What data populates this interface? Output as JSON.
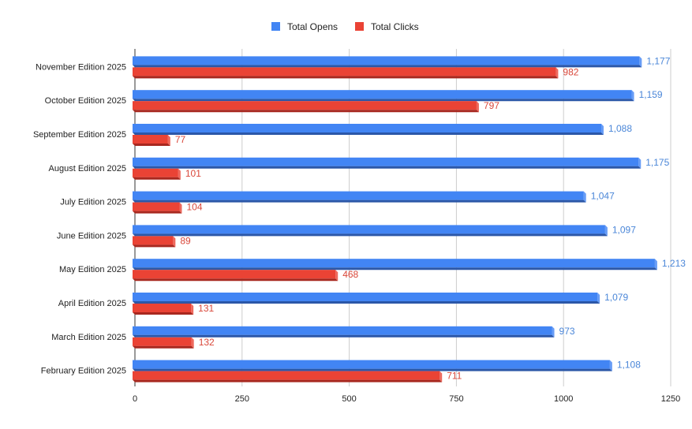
{
  "chart_data": {
    "type": "bar",
    "orientation": "horizontal",
    "style": "3d",
    "categories": [
      "November Edition 2025",
      "October Edition 2025",
      "September Edition 2025",
      "August Edition 2025",
      "July Edition 2025",
      "June Edition 2025",
      "May Edition 2025",
      "April Edition 2025",
      "March Edition 2025",
      "February Edition 2025"
    ],
    "series": [
      {
        "name": "Total Opens",
        "color": "#4285f4",
        "dark": "#2b57a8",
        "label_color": "#4a86d8",
        "values": [
          1177,
          1159,
          1088,
          1175,
          1047,
          1097,
          1213,
          1079,
          973,
          1108
        ],
        "labels": [
          "1,177",
          "1,159",
          "1,088",
          "1,175",
          "1,047",
          "1,097",
          "1,213",
          "1,079",
          "973",
          "1,108"
        ]
      },
      {
        "name": "Total Clicks",
        "color": "#ea4335",
        "dark": "#a8281f",
        "label_color": "#d9473a",
        "values": [
          982,
          797,
          77,
          101,
          104,
          89,
          468,
          131,
          132,
          711
        ],
        "labels": [
          "982",
          "797",
          "77",
          "101",
          "104",
          "89",
          "468",
          "131",
          "132",
          "711"
        ]
      }
    ],
    "xlim": [
      0,
      1250
    ],
    "xticks": [
      0,
      250,
      500,
      750,
      1000,
      1250
    ],
    "xtick_labels": [
      "0",
      "250",
      "500",
      "750",
      "1000",
      "1250"
    ],
    "grid": true,
    "legend_position": "top"
  }
}
